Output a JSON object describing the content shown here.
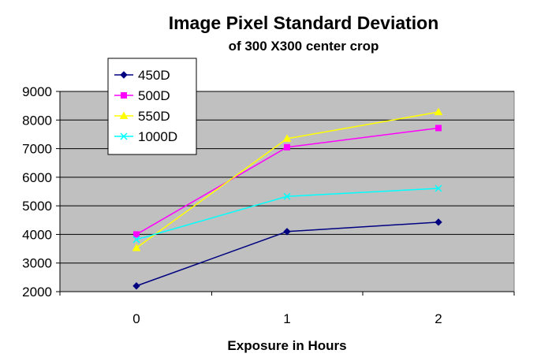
{
  "chart_data": {
    "type": "line",
    "title": "Image Pixel Standard Deviation",
    "subtitle": "of 300 X300 center crop",
    "xlabel": "Exposure in Hours",
    "ylabel": "",
    "x": [
      0,
      1,
      2
    ],
    "x_tick_labels": [
      "0",
      "1",
      "2"
    ],
    "ylim": [
      2000,
      9000
    ],
    "y_ticks": [
      2000,
      3000,
      4000,
      5000,
      6000,
      7000,
      8000,
      9000
    ],
    "grid": true,
    "legend_position": "top-left",
    "plot_background": "#c0c0c0",
    "series": [
      {
        "name": "450D",
        "values": [
          2200,
          4100,
          4430
        ],
        "color": "#000080",
        "marker": "diamond"
      },
      {
        "name": "500D",
        "values": [
          4000,
          7050,
          7720
        ],
        "color": "#ff00ff",
        "marker": "square"
      },
      {
        "name": "550D",
        "values": [
          3530,
          7350,
          8280
        ],
        "color": "#ffff00",
        "marker": "triangle"
      },
      {
        "name": "1000D",
        "values": [
          3820,
          5330,
          5610
        ],
        "color": "#00ffff",
        "marker": "cross"
      }
    ]
  }
}
